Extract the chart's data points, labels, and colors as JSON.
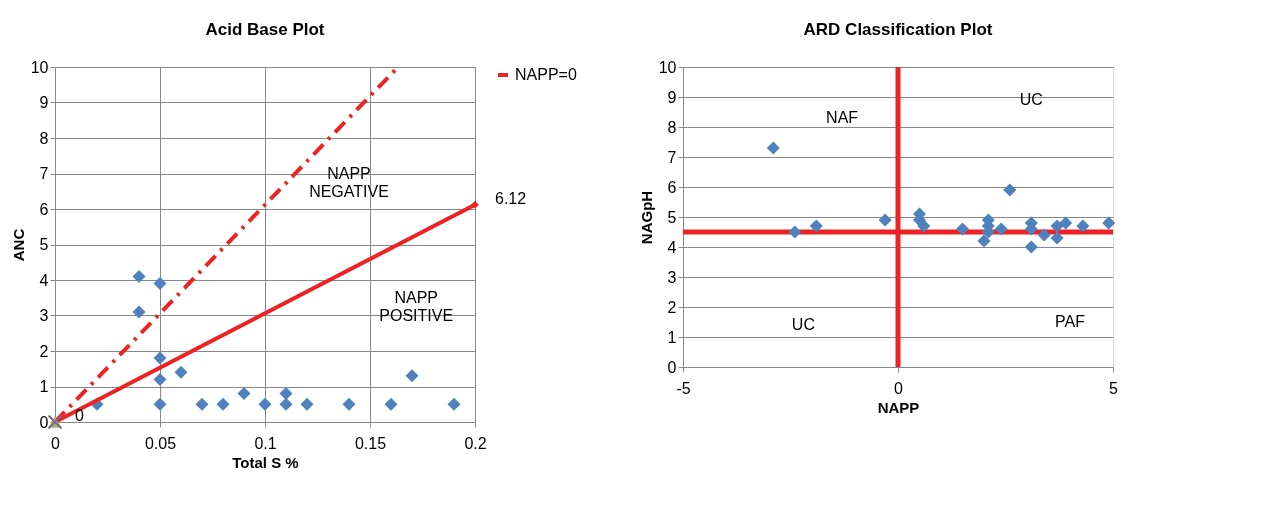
{
  "chart_data": [
    {
      "type": "scatter",
      "title": "Acid Base Plot",
      "xlabel": "Total S %",
      "ylabel": "ANC",
      "xlim": [
        0,
        0.2
      ],
      "ylim": [
        0,
        10
      ],
      "xticks": [
        0,
        0.05,
        0.1,
        0.15,
        0.2
      ],
      "yticks": [
        0,
        1,
        2,
        3,
        4,
        5,
        6,
        7,
        8,
        9,
        10
      ],
      "grid": true,
      "legend": "right",
      "marker": "diamond",
      "annotations": [
        "NAPP NEGATIVE",
        "NAPP POSITIVE"
      ],
      "series": [
        {
          "color": "#4f81bd",
          "x": [
            0.02,
            0.04,
            0.04,
            0.05,
            0.05,
            0.05,
            0.05,
            0.06,
            0.07,
            0.08,
            0.09,
            0.1,
            0.11,
            0.11,
            0.12,
            0.14,
            0.16,
            0.17,
            0.19
          ],
          "values": [
            0.5,
            4.1,
            3.1,
            3.9,
            1.8,
            1.2,
            0.5,
            1.4,
            0.5,
            0.5,
            0.8,
            0.5,
            0.8,
            0.5,
            0.5,
            0.5,
            0.5,
            1.3,
            0.5
          ]
        },
        {
          "type": "line",
          "name": "NAPP=0",
          "color": "#ee2222",
          "x": [
            0,
            0.2
          ],
          "values": [
            0,
            6.12
          ],
          "value_labels": [
            "0",
            "6.12"
          ],
          "marker": "diamond",
          "line_style": "solid"
        },
        {
          "type": "line",
          "color": "#ee2222",
          "x": [
            0,
            0.1634
          ],
          "values": [
            0,
            10
          ],
          "marker": "none",
          "line_style": "dashed"
        },
        {
          "color": "#9bbb59",
          "x": [
            0
          ],
          "values": [
            0
          ],
          "marker": "triangle"
        },
        {
          "color": "#8064a2",
          "x": [
            0
          ],
          "values": [
            0
          ],
          "marker": "cross"
        }
      ]
    },
    {
      "type": "scatter",
      "title": "ARD Classification Plot",
      "xlabel": "NAPP",
      "ylabel": "NAGpH",
      "xlim": [
        -5,
        5
      ],
      "ylim": [
        0,
        10
      ],
      "xticks": [
        -5,
        0,
        5
      ],
      "yticks": [
        0,
        1,
        2,
        3,
        4,
        5,
        6,
        7,
        8,
        9,
        10
      ],
      "grid": "y",
      "marker": "diamond",
      "annotations": [
        "NAF",
        "UC",
        "UC",
        "PAF"
      ],
      "ref_lines": [
        {
          "axis": "x",
          "value": 0,
          "color": "#ee2222"
        },
        {
          "axis": "y",
          "value": 4.5,
          "color": "#ee2222"
        }
      ],
      "series": [
        {
          "color": "#4f81bd",
          "x": [
            -2.9,
            -2.4,
            -1.9,
            -0.3,
            0.5,
            0.5,
            0.6,
            1.5,
            2.0,
            2.1,
            2.1,
            2.1,
            2.4,
            2.6,
            3.1,
            3.1,
            3.1,
            3.4,
            3.7,
            3.7,
            3.9,
            4.3,
            4.9
          ],
          "values": [
            7.3,
            4.5,
            4.7,
            4.9,
            5.1,
            4.9,
            4.7,
            4.6,
            4.2,
            4.9,
            4.7,
            4.5,
            4.6,
            5.9,
            4.8,
            4.6,
            4.0,
            4.4,
            4.7,
            4.3,
            4.8,
            4.7,
            4.8
          ]
        }
      ]
    }
  ]
}
